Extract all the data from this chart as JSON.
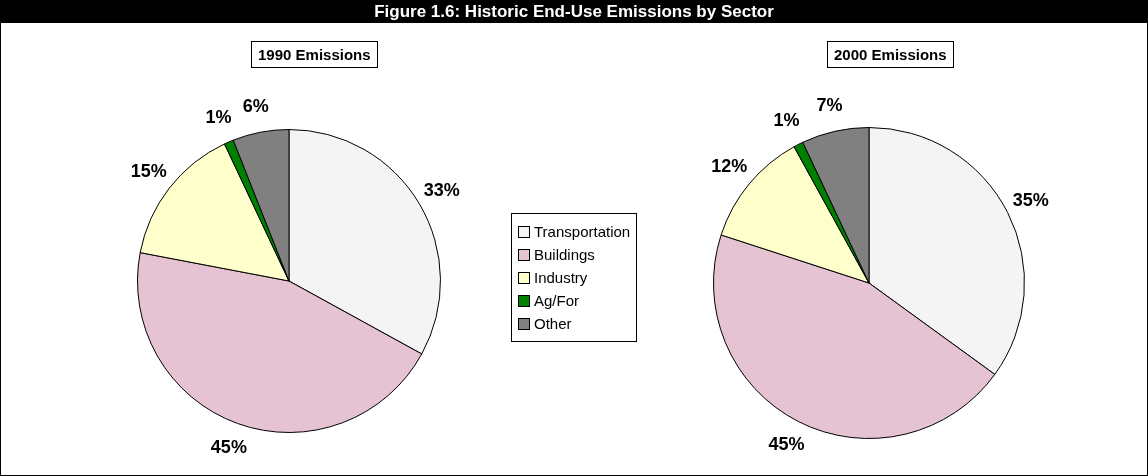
{
  "chart_data": [
    {
      "type": "other",
      "title": "Figure 1.6: Historic End-Use Emissions by Sector"
    },
    {
      "type": "pie",
      "title": "1990 Emissions",
      "categories": [
        "Transportation",
        "Buildings",
        "Industry",
        "Ag/For",
        "Other"
      ],
      "values": [
        33,
        45,
        15,
        1,
        6
      ],
      "colors": [
        "#f4f4f4",
        "#e6c3d3",
        "#ffffcc",
        "#008000",
        "#808080"
      ],
      "value_labels": [
        "33%",
        "45%",
        "15%",
        "1%",
        "6%"
      ],
      "legend": "right"
    },
    {
      "type": "pie",
      "title": "2000 Emissions",
      "categories": [
        null,
        null,
        null,
        null,
        null
      ],
      "values": [
        35,
        45,
        12,
        1,
        7
      ],
      "colors": [
        "#f4f4f4",
        "#e6c3d3",
        "#ffffcc",
        "#008000",
        "#808080"
      ],
      "value_labels": [
        "35%",
        "45%",
        "12%",
        "1%",
        "7%"
      ]
    }
  ]
}
